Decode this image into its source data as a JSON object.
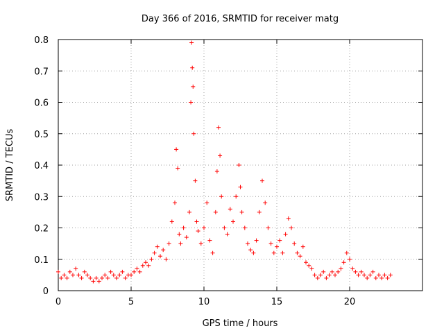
{
  "chart_data": {
    "type": "scatter",
    "title": "Day 366 of 2016, SRMTID for receiver matg",
    "xlabel": "GPS time / hours",
    "ylabel": "SRMTID / TECUs",
    "xlim": [
      0,
      25
    ],
    "ylim": [
      0,
      0.8
    ],
    "xticks": [
      0,
      5,
      10,
      15,
      20
    ],
    "yticks": [
      0,
      0.1,
      0.2,
      0.3,
      0.4,
      0.5,
      0.6,
      0.7,
      0.8
    ],
    "grid": true,
    "marker": "+",
    "color": "#ff0000",
    "series": [
      {
        "name": "SRMTID",
        "points": [
          [
            0.0,
            0.06
          ],
          [
            0.2,
            0.04
          ],
          [
            0.4,
            0.05
          ],
          [
            0.6,
            0.04
          ],
          [
            0.8,
            0.06
          ],
          [
            1.0,
            0.05
          ],
          [
            1.2,
            0.07
          ],
          [
            1.4,
            0.05
          ],
          [
            1.6,
            0.04
          ],
          [
            1.8,
            0.06
          ],
          [
            2.0,
            0.05
          ],
          [
            2.2,
            0.04
          ],
          [
            2.4,
            0.03
          ],
          [
            2.6,
            0.04
          ],
          [
            2.8,
            0.03
          ],
          [
            3.0,
            0.04
          ],
          [
            3.2,
            0.05
          ],
          [
            3.4,
            0.04
          ],
          [
            3.6,
            0.06
          ],
          [
            3.8,
            0.05
          ],
          [
            4.0,
            0.04
          ],
          [
            4.2,
            0.05
          ],
          [
            4.4,
            0.06
          ],
          [
            4.6,
            0.04
          ],
          [
            4.8,
            0.05
          ],
          [
            5.0,
            0.05
          ],
          [
            5.2,
            0.06
          ],
          [
            5.4,
            0.07
          ],
          [
            5.6,
            0.06
          ],
          [
            5.8,
            0.08
          ],
          [
            6.0,
            0.09
          ],
          [
            6.2,
            0.08
          ],
          [
            6.4,
            0.1
          ],
          [
            6.6,
            0.12
          ],
          [
            6.8,
            0.14
          ],
          [
            7.0,
            0.11
          ],
          [
            7.2,
            0.13
          ],
          [
            7.4,
            0.1
          ],
          [
            7.6,
            0.15
          ],
          [
            7.8,
            0.22
          ],
          [
            8.0,
            0.28
          ],
          [
            8.1,
            0.45
          ],
          [
            8.2,
            0.39
          ],
          [
            8.3,
            0.18
          ],
          [
            8.4,
            0.15
          ],
          [
            8.6,
            0.2
          ],
          [
            8.8,
            0.17
          ],
          [
            9.0,
            0.25
          ],
          [
            9.1,
            0.6
          ],
          [
            9.15,
            0.79
          ],
          [
            9.2,
            0.71
          ],
          [
            9.25,
            0.65
          ],
          [
            9.3,
            0.5
          ],
          [
            9.4,
            0.35
          ],
          [
            9.5,
            0.22
          ],
          [
            9.6,
            0.19
          ],
          [
            9.8,
            0.15
          ],
          [
            10.0,
            0.2
          ],
          [
            10.2,
            0.28
          ],
          [
            10.4,
            0.16
          ],
          [
            10.6,
            0.12
          ],
          [
            10.8,
            0.25
          ],
          [
            10.9,
            0.38
          ],
          [
            11.0,
            0.52
          ],
          [
            11.1,
            0.43
          ],
          [
            11.2,
            0.3
          ],
          [
            11.4,
            0.2
          ],
          [
            11.6,
            0.18
          ],
          [
            11.8,
            0.26
          ],
          [
            12.0,
            0.22
          ],
          [
            12.2,
            0.3
          ],
          [
            12.4,
            0.4
          ],
          [
            12.5,
            0.33
          ],
          [
            12.6,
            0.25
          ],
          [
            12.8,
            0.2
          ],
          [
            13.0,
            0.15
          ],
          [
            13.2,
            0.13
          ],
          [
            13.4,
            0.12
          ],
          [
            13.6,
            0.16
          ],
          [
            13.8,
            0.25
          ],
          [
            14.0,
            0.35
          ],
          [
            14.2,
            0.28
          ],
          [
            14.4,
            0.2
          ],
          [
            14.6,
            0.15
          ],
          [
            14.8,
            0.12
          ],
          [
            15.0,
            0.14
          ],
          [
            15.2,
            0.16
          ],
          [
            15.4,
            0.12
          ],
          [
            15.6,
            0.18
          ],
          [
            15.8,
            0.23
          ],
          [
            16.0,
            0.2
          ],
          [
            16.2,
            0.15
          ],
          [
            16.4,
            0.12
          ],
          [
            16.6,
            0.11
          ],
          [
            16.8,
            0.14
          ],
          [
            17.0,
            0.09
          ],
          [
            17.2,
            0.08
          ],
          [
            17.4,
            0.07
          ],
          [
            17.6,
            0.05
          ],
          [
            17.8,
            0.04
          ],
          [
            18.0,
            0.05
          ],
          [
            18.2,
            0.06
          ],
          [
            18.4,
            0.04
          ],
          [
            18.6,
            0.05
          ],
          [
            18.8,
            0.06
          ],
          [
            19.0,
            0.05
          ],
          [
            19.2,
            0.06
          ],
          [
            19.4,
            0.07
          ],
          [
            19.6,
            0.09
          ],
          [
            19.8,
            0.12
          ],
          [
            20.0,
            0.1
          ],
          [
            20.2,
            0.07
          ],
          [
            20.4,
            0.06
          ],
          [
            20.6,
            0.05
          ],
          [
            20.8,
            0.06
          ],
          [
            21.0,
            0.05
          ],
          [
            21.2,
            0.04
          ],
          [
            21.4,
            0.05
          ],
          [
            21.6,
            0.06
          ],
          [
            21.8,
            0.04
          ],
          [
            22.0,
            0.05
          ],
          [
            22.2,
            0.04
          ],
          [
            22.4,
            0.05
          ],
          [
            22.6,
            0.04
          ],
          [
            22.8,
            0.05
          ]
        ]
      }
    ]
  }
}
